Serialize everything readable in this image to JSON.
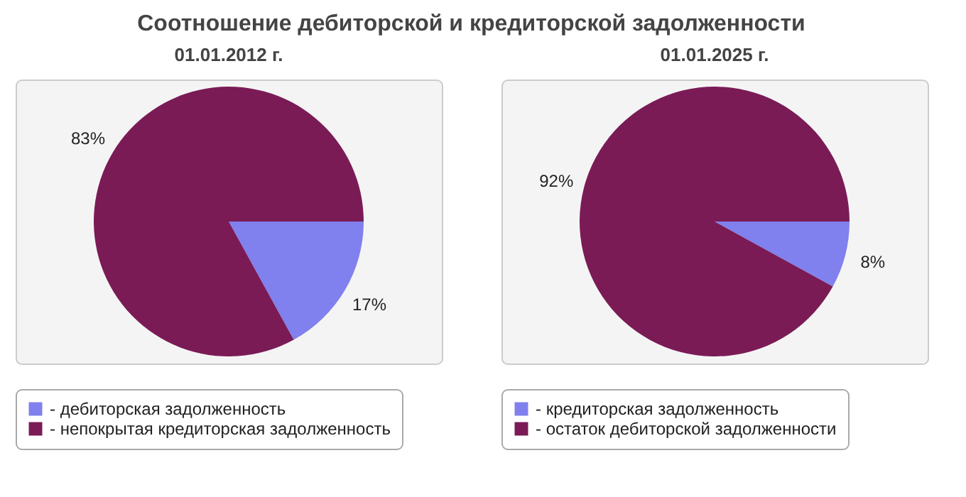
{
  "chart_data": [
    {
      "type": "pie",
      "title": "Соотношение дебиторской и кредиторской задолженности",
      "subtitle": "01.01.2012 г.",
      "categories": [
        "- дебиторская задолженность",
        "- непокрытая кредиторская задолженность"
      ],
      "values": [
        17,
        83
      ],
      "colors": [
        "#8080ee",
        "#7a1b56"
      ],
      "value_labels": [
        "17%",
        "83%"
      ],
      "legend": "bottom"
    },
    {
      "type": "pie",
      "subtitle": "01.01.2025 г.",
      "categories": [
        "- кредиторская задолженность",
        "- остаток дебиторской задолженности"
      ],
      "values": [
        8,
        92
      ],
      "colors": [
        "#8080ee",
        "#7a1b56"
      ],
      "value_labels": [
        "8%",
        "92%"
      ],
      "legend": "bottom"
    }
  ]
}
